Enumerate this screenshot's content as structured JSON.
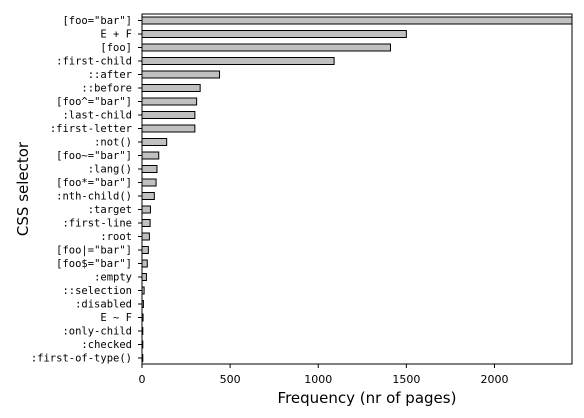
{
  "chart_data": {
    "type": "bar",
    "orientation": "horizontal",
    "xlabel": "Frequency (nr of pages)",
    "ylabel": "CSS selector",
    "xlim": [
      0,
      2440
    ],
    "xticks": [
      "0",
      "500",
      "1000",
      "1500",
      "2000"
    ],
    "xtick_values": [
      0,
      500,
      1000,
      1500,
      2000
    ],
    "grid": false,
    "bar_color": "#c0c0c0",
    "categories": [
      "[foo=\"bar\"]",
      "E + F",
      "[foo]",
      ":first-child",
      "::after",
      "::before",
      "[foo^=\"bar\"]",
      ":last-child",
      ":first-letter",
      ":not()",
      "[foo~=\"bar\"]",
      ":lang()",
      "[foo*=\"bar\"]",
      ":nth-child()",
      ":target",
      ":first-line",
      ":root",
      "[foo|=\"bar\"]",
      "[foo$=\"bar\"]",
      ":empty",
      "::selection",
      ":disabled",
      "E ~ F",
      ":only-child",
      ":checked",
      ":first-of-type()"
    ],
    "values": [
      2440,
      1500,
      1410,
      1090,
      440,
      330,
      310,
      300,
      300,
      140,
      95,
      85,
      80,
      70,
      48,
      46,
      42,
      36,
      30,
      25,
      12,
      8,
      6,
      4,
      3,
      2
    ]
  }
}
